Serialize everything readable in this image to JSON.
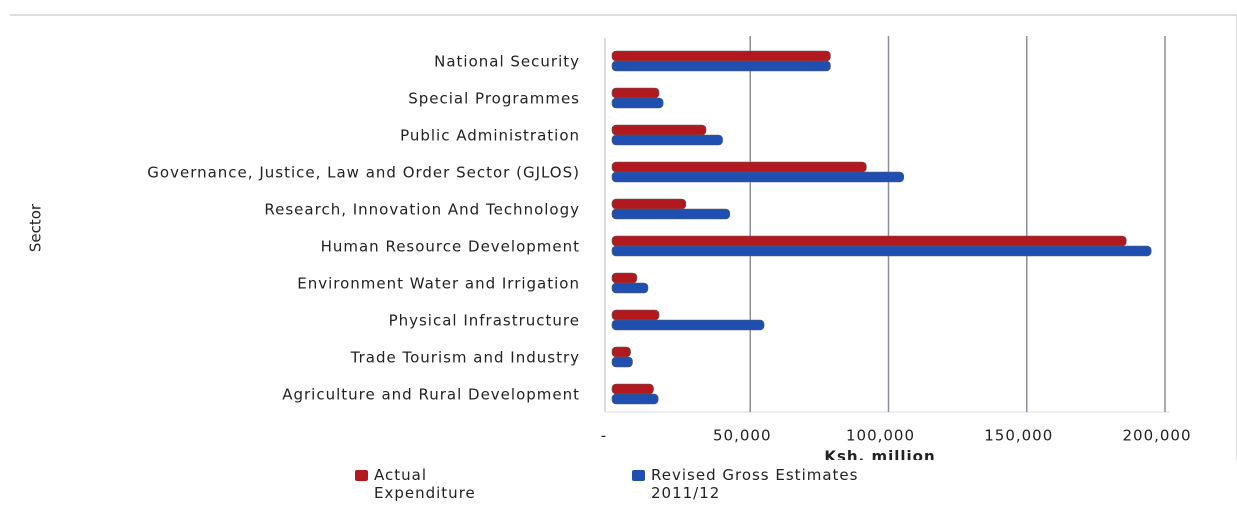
{
  "chart_data": {
    "type": "bar",
    "orientation": "horizontal",
    "x_label": "Ksh. million",
    "y_label": "Sector",
    "categories": [
      "National Security",
      "Special Programmes",
      "Public Administration",
      "Governance, Justice, Law and Order Sector (GJLOS)",
      "Research, Innovation And Technology",
      "Human Resource Development",
      "Environment Water and Irrigation",
      "Physical Infrastructure",
      "Trade Tourism and Industry",
      "Agriculture and Rural Development"
    ],
    "series": [
      {
        "name": "Actual Expenditure",
        "color": "#b2191e",
        "values": [
          79000,
          17000,
          34000,
          92000,
          26700,
          186000,
          9000,
          17000,
          6700,
          15000
        ]
      },
      {
        "name": "Revised Gross Estimates 2011/12",
        "color": "#1f4fb0",
        "values": [
          79000,
          18500,
          40000,
          105500,
          42600,
          195000,
          13000,
          55000,
          7400,
          16700
        ]
      }
    ],
    "xlim": [
      0,
      200000
    ],
    "xticks": [
      {
        "value": 0,
        "label": "-"
      },
      {
        "value": 50000,
        "label": "50,000"
      },
      {
        "value": 100000,
        "label": "100,000"
      },
      {
        "value": 150000,
        "label": "150,000"
      },
      {
        "value": 200000,
        "label": "200,000"
      }
    ],
    "grid": true,
    "legend": "bottom"
  }
}
